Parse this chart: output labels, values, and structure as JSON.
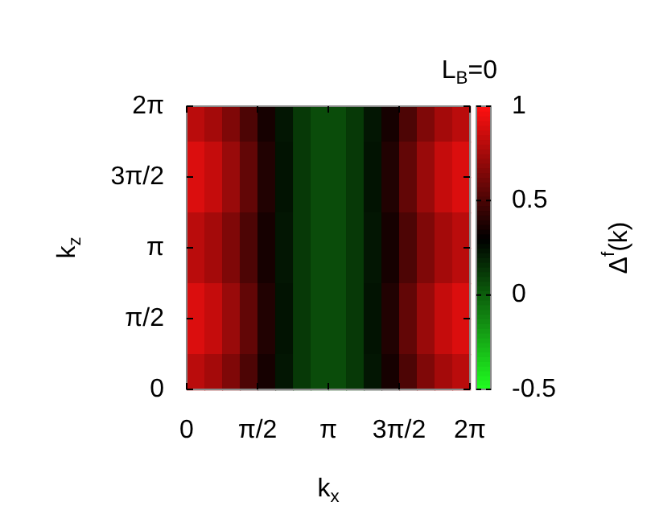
{
  "chart_data": {
    "type": "heatmap",
    "title": "L$_{B}$=0",
    "xlabel": "k$_{x}$",
    "ylabel": "k$_{z}$",
    "clabel": "Δ$^{f}$(k)",
    "x": [
      0.196,
      0.589,
      0.982,
      1.374,
      1.767,
      2.16,
      2.553,
      2.945,
      3.338,
      3.731,
      4.123,
      4.516,
      4.909,
      5.301,
      5.694,
      6.087
    ],
    "y": [
      5.89,
      5.105,
      4.32,
      3.534,
      2.749,
      1.963,
      1.178,
      0.393
    ],
    "xlim": [
      0,
      6.2832
    ],
    "ylim": [
      0,
      6.2832
    ],
    "xticks": [
      {
        "value": 0,
        "label": "0"
      },
      {
        "value": 1.5708,
        "label": "π/2"
      },
      {
        "value": 3.1416,
        "label": "π"
      },
      {
        "value": 4.7124,
        "label": "3π/2"
      },
      {
        "value": 6.2832,
        "label": "2π"
      }
    ],
    "yticks": [
      {
        "value": 0,
        "label": "0"
      },
      {
        "value": 1.5708,
        "label": "π/2"
      },
      {
        "value": 3.1416,
        "label": "π"
      },
      {
        "value": 4.7124,
        "label": "3π/2"
      },
      {
        "value": 6.2832,
        "label": "2π"
      }
    ],
    "clim": [
      -0.5,
      1
    ],
    "cticks": [
      -0.5,
      0,
      0.5,
      1
    ],
    "cells": [
      [
        0.81,
        0.75,
        0.65,
        0.51,
        0.36,
        0.23,
        0.12,
        0.06,
        0.06,
        0.12,
        0.23,
        0.36,
        0.51,
        0.65,
        0.75,
        0.81
      ],
      [
        0.9,
        0.84,
        0.72,
        0.57,
        0.39,
        0.24,
        0.12,
        0.06,
        0.06,
        0.12,
        0.24,
        0.39,
        0.57,
        0.72,
        0.84,
        0.9
      ],
      [
        0.9,
        0.84,
        0.72,
        0.57,
        0.39,
        0.24,
        0.12,
        0.06,
        0.06,
        0.12,
        0.24,
        0.39,
        0.57,
        0.72,
        0.84,
        0.9
      ],
      [
        0.81,
        0.75,
        0.65,
        0.51,
        0.36,
        0.23,
        0.12,
        0.06,
        0.06,
        0.12,
        0.23,
        0.36,
        0.51,
        0.65,
        0.75,
        0.81
      ],
      [
        0.81,
        0.75,
        0.65,
        0.51,
        0.36,
        0.23,
        0.12,
        0.06,
        0.06,
        0.12,
        0.23,
        0.36,
        0.51,
        0.65,
        0.75,
        0.81
      ],
      [
        0.9,
        0.84,
        0.72,
        0.57,
        0.39,
        0.24,
        0.12,
        0.06,
        0.06,
        0.12,
        0.24,
        0.39,
        0.57,
        0.72,
        0.84,
        0.9
      ],
      [
        0.9,
        0.84,
        0.72,
        0.57,
        0.39,
        0.24,
        0.12,
        0.06,
        0.06,
        0.12,
        0.24,
        0.39,
        0.57,
        0.72,
        0.84,
        0.9
      ],
      [
        0.81,
        0.75,
        0.65,
        0.51,
        0.36,
        0.23,
        0.12,
        0.06,
        0.06,
        0.12,
        0.23,
        0.36,
        0.51,
        0.65,
        0.75,
        0.81
      ]
    ]
  }
}
